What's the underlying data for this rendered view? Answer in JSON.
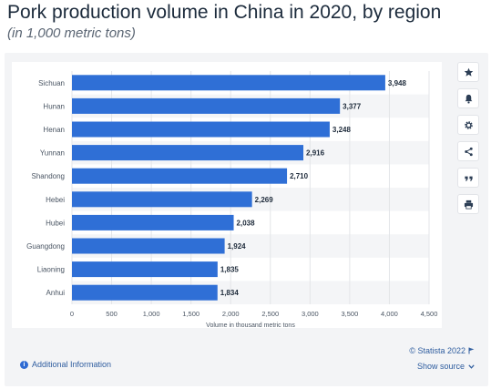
{
  "header": {
    "title": "Pork production volume in China in 2020, by region",
    "subtitle": "(in 1,000 metric tons)"
  },
  "toolbar": {
    "items": [
      {
        "name": "star-icon"
      },
      {
        "name": "bell-icon"
      },
      {
        "name": "gear-icon"
      },
      {
        "name": "share-icon"
      },
      {
        "name": "quote-icon"
      },
      {
        "name": "print-icon"
      }
    ]
  },
  "footer": {
    "info_label": "Additional Information",
    "credit_label": "© Statista 2022",
    "source_label": "Show source"
  },
  "colors": {
    "bar": "#2f6fd6",
    "stripe": "#f4f5f7",
    "grid": "#e3e5e8",
    "axis_text": "#4a5563",
    "label_text": "#1d2a3a"
  },
  "chart_data": {
    "type": "bar",
    "orientation": "horizontal",
    "categories": [
      "Sichuan",
      "Hunan",
      "Henan",
      "Yunnan",
      "Shandong",
      "Hebei",
      "Hubei",
      "Guangdong",
      "Liaoning",
      "Anhui"
    ],
    "values": [
      3948,
      3377,
      3248,
      2916,
      2710,
      2269,
      2038,
      1924,
      1835,
      1834
    ],
    "value_labels": [
      "3,948",
      "3,377",
      "3,248",
      "2,916",
      "2,710",
      "2,269",
      "2,038",
      "1,924",
      "1,835",
      "1,834"
    ],
    "xlabel": "Volume in thousand metric tons",
    "xlim": [
      0,
      4500
    ],
    "ticks": [
      0,
      500,
      1000,
      1500,
      2000,
      2500,
      3000,
      3500,
      4000,
      4500
    ],
    "tick_labels": [
      "0",
      "500",
      "1,000",
      "1,500",
      "2,000",
      "2,500",
      "3,000",
      "3,500",
      "4,000",
      "4,500"
    ],
    "grid": true,
    "legend": "none"
  }
}
